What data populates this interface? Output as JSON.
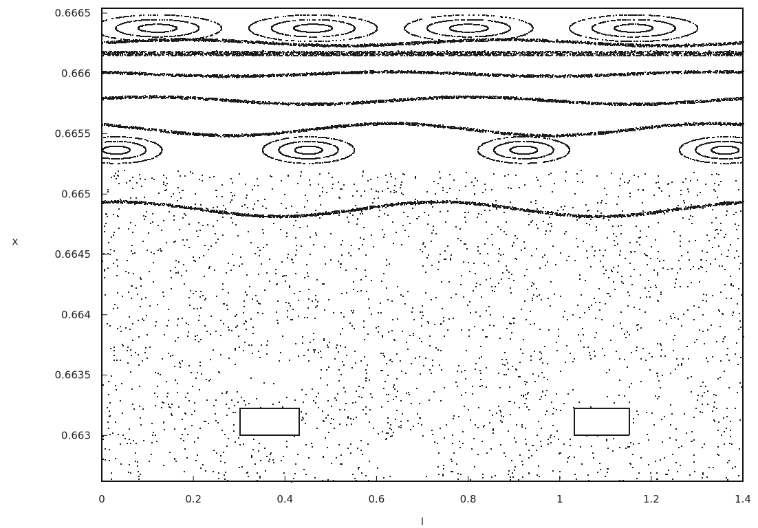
{
  "chart_data": {
    "type": "scatter",
    "title": "",
    "xlabel": "l",
    "ylabel": "x",
    "xlim": [
      0,
      1.4
    ],
    "ylim": [
      0.66262,
      0.66654
    ],
    "x_ticks": [
      "0",
      "0.2",
      "0.4",
      "0.6",
      "0.8",
      "1",
      "1.2",
      "1.4"
    ],
    "y_ticks": [
      "0.6665",
      "0.666",
      "0.6655",
      "0.665",
      "0.6645",
      "0.664",
      "0.6635",
      "0.663"
    ],
    "grid": false,
    "legend": "none",
    "series": [
      {
        "description_kind": "poincare-section",
        "period_x": 0.7,
        "regions": {
          "chaotic_sea": {
            "y_range": [
              0.66262,
              0.6652
            ],
            "density": 0.55
          },
          "invariant_curves": [
            {
              "y": 0.66626,
              "amplitude": 2.5e-05,
              "phase": 0.0
            },
            {
              "y": 0.666,
              "amplitude": 1.8e-05,
              "phase": 0.35
            },
            {
              "y": 0.66578,
              "amplitude": 3e-05,
              "phase": 0.1
            },
            {
              "y": 0.66554,
              "amplitude": 5e-05,
              "phase": 0.35
            },
            {
              "y": 0.66488,
              "amplitude": 6e-05,
              "phase": 0.2
            }
          ],
          "island_chain_top": {
            "y": 0.66638,
            "centers_x": [
              0.12,
              0.46,
              0.8,
              1.16
            ],
            "half_width": 0.14,
            "half_height": 0.00011
          },
          "island_chain_mid": {
            "y": 0.66537,
            "centers_x": [
              0.03,
              0.45,
              0.92,
              1.36
            ],
            "half_width": 0.1,
            "half_height": 0.00011
          },
          "rect_islands": [
            {
              "x": [
                0.3,
                0.43
              ],
              "y": [
                0.66301,
                0.66323
              ]
            },
            {
              "x": [
                1.03,
                1.15
              ],
              "y": [
                0.66301,
                0.66323
              ]
            }
          ],
          "voids": [
            {
              "cx": 0.35,
              "cy": 0.66348,
              "rx": 0.09,
              "ry": 0.00015
            },
            {
              "cx": 1.07,
              "cy": 0.66348,
              "rx": 0.09,
              "ry": 0.00015
            },
            {
              "cx": 0.67,
              "cy": 0.66285,
              "rx": 0.06,
              "ry": 0.0002
            }
          ]
        }
      }
    ]
  }
}
